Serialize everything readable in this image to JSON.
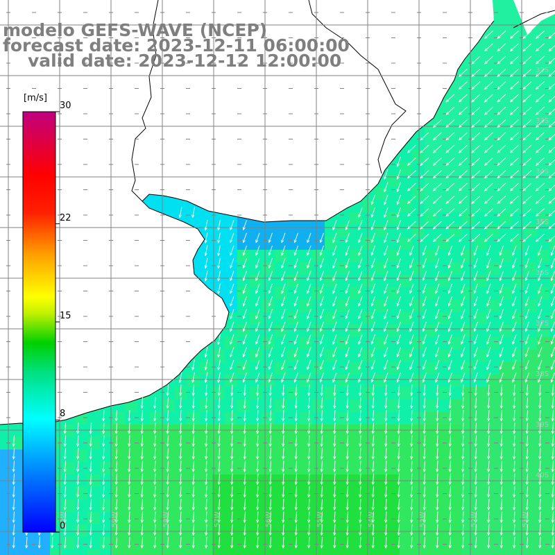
{
  "title": {
    "model": "modelo GEFS-WAVE (NCEP)",
    "forecast": "forecast date: 2023-12-11 06:00:00",
    "valid": "valid date: 2023-12-12 12:00:00"
  },
  "colorbar": {
    "unit": "[m/s]",
    "min": 0,
    "max": 30,
    "ticks": [
      {
        "value": 30,
        "label": "30"
      },
      {
        "value": 22,
        "label": "22"
      },
      {
        "value": 15,
        "label": "15"
      },
      {
        "value": 8,
        "label": "8"
      },
      {
        "value": 0,
        "label": "0"
      }
    ],
    "colors": [
      "#0000ff",
      "#00c0ff",
      "#00ffff",
      "#00e070",
      "#00d000",
      "#a0e000",
      "#ffff00",
      "#ffa000",
      "#ff4000",
      "#ff0000",
      "#e00050",
      "#c00080"
    ]
  },
  "map": {
    "lat_labels": [
      "32S",
      "33S",
      "34S",
      "35S",
      "36S",
      "37S",
      "38S",
      "39S",
      "40S"
    ],
    "lon_labels": [
      "60W",
      "59W",
      "58W",
      "57W",
      "56W",
      "55W",
      "54W",
      "53W",
      "52W",
      "51W"
    ],
    "wind_direction": "from north-east toward south-west",
    "land_color": "#ffffff",
    "grid_color": "#808080"
  }
}
